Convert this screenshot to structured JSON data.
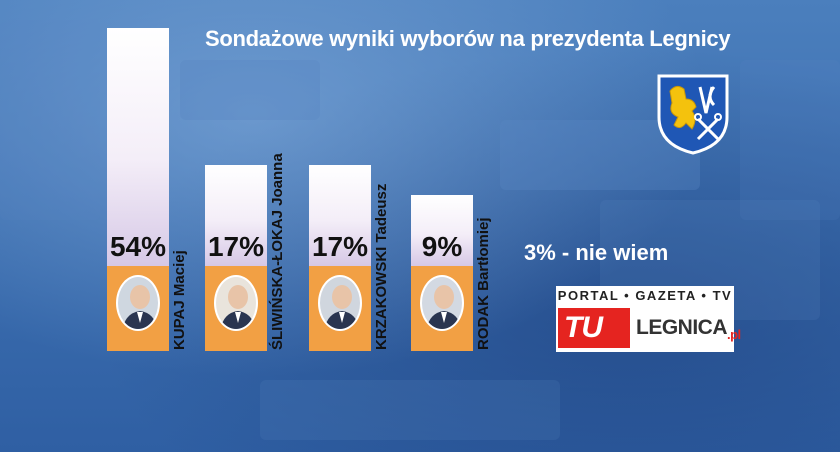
{
  "chart_data": {
    "type": "bar",
    "title": "Sondażowe wyniki wyborów  na prezydenta Legnicy",
    "categories": [
      "KUPAJ Maciej",
      "ŚLIWIŃSKA-ŁOKAJ Joanna",
      "KRZAKOWSKI Tadeusz",
      "RODAK Bartłomiej"
    ],
    "values": [
      54,
      17,
      17,
      9
    ],
    "labels": [
      "54%",
      "17%",
      "17%",
      "9%"
    ],
    "ylim": [
      0,
      54
    ],
    "grid": false,
    "note": "3% - nie wiem"
  },
  "colors": {
    "background": "#3d70b1",
    "bar": "#f4eef8",
    "photo_box": "#f2a044",
    "title": "#ffffff"
  },
  "logo": {
    "top_line": "PORTAL • GAZETA • TV",
    "tu": "TU",
    "name": "LEGNICA",
    "suffix": ".pl"
  },
  "crest_icon": "legnica-coat-of-arms-icon"
}
